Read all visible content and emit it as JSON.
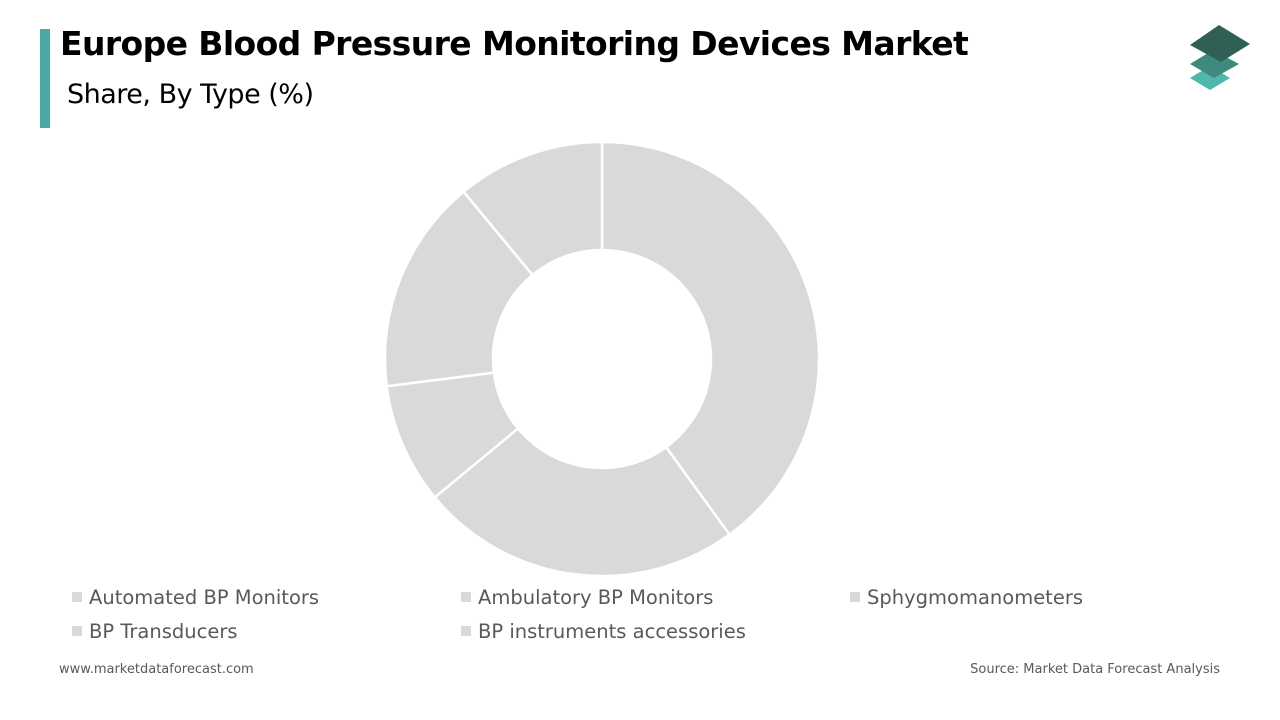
{
  "header": {
    "title": "Europe Blood Pressure Monitoring Devices Market",
    "subtitle": "Share, By Type  (%)"
  },
  "logo": {
    "icon": "stacked-layers-logo-icon"
  },
  "colors": {
    "accent": "#4aa9a5",
    "slice_fill": "#d9d9d9",
    "slice_border": "#ffffff",
    "legend_swatch": "#d9d9d9",
    "logo_top": "#2f5f55",
    "logo_middle": "#3f8a7e",
    "logo_bottom": "#4fb7ad"
  },
  "chart_data": {
    "type": "pie",
    "variant": "donut",
    "title": "Europe Blood Pressure Monitoring Devices Market",
    "subtitle": "Share, By Type  (%)",
    "unit": "%",
    "categories": [
      "Automated BP Monitors",
      "Ambulatory BP Monitors",
      "Sphygmomanometers",
      "BP Transducers",
      "BP instruments accessories"
    ],
    "values": [
      40,
      24,
      9,
      16,
      11
    ],
    "legend_position": "bottom",
    "data_labels": false
  },
  "footer": {
    "website": "www.marketdataforecast.com",
    "source": "Source: Market Data Forecast Analysis"
  }
}
